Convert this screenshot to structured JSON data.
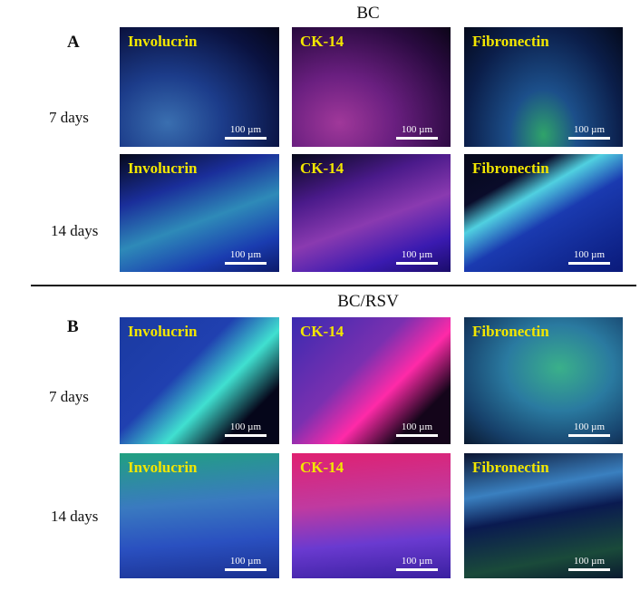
{
  "panels": [
    {
      "letter": "A",
      "title": "BC",
      "rows": [
        {
          "label": "7 days",
          "images": [
            {
              "stain": "Involucrin",
              "scale": "100 µm"
            },
            {
              "stain": "CK-14",
              "scale": "100 µm"
            },
            {
              "stain": "Fibronectin",
              "scale": "100 µm"
            }
          ]
        },
        {
          "label": "14 days",
          "images": [
            {
              "stain": "Involucrin",
              "scale": "100 µm"
            },
            {
              "stain": "CK-14",
              "scale": "100 µm"
            },
            {
              "stain": "Fibronectin",
              "scale": "100 µm"
            }
          ]
        }
      ]
    },
    {
      "letter": "B",
      "title": "BC/RSV",
      "rows": [
        {
          "label": "7 days",
          "images": [
            {
              "stain": "Involucrin",
              "scale": "100 µm"
            },
            {
              "stain": "CK-14",
              "scale": "100 µm"
            },
            {
              "stain": "Fibronectin",
              "scale": "100 µm"
            }
          ]
        },
        {
          "label": "14 days",
          "images": [
            {
              "stain": "Involucrin",
              "scale": "100 µm"
            },
            {
              "stain": "CK-14",
              "scale": "100 µm"
            },
            {
              "stain": "Fibronectin",
              "scale": "100 µm"
            }
          ]
        }
      ]
    }
  ]
}
